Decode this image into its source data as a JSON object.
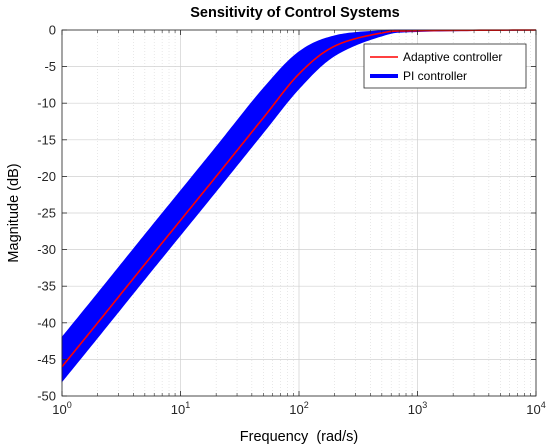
{
  "chart_data": {
    "type": "line",
    "title": "Sensitivity of Control Systems",
    "xlabel": "Frequency  (rad/s)",
    "ylabel": "Magnitude (dB)",
    "xscale": "log",
    "xlim": [
      1,
      10000
    ],
    "ylim": [
      -50,
      0
    ],
    "grid": true,
    "minor_grid": true,
    "legend_position": "top-right",
    "x_ticks": [
      {
        "base": "10",
        "exp": "0"
      },
      {
        "base": "10",
        "exp": "1"
      },
      {
        "base": "10",
        "exp": "2"
      },
      {
        "base": "10",
        "exp": "3"
      },
      {
        "base": "10",
        "exp": "4"
      }
    ],
    "y_ticks": [
      "0",
      "-5",
      "-10",
      "-15",
      "-20",
      "-25",
      "-30",
      "-35",
      "-40",
      "-45",
      "-50"
    ],
    "series": [
      {
        "name": "Adaptive controller",
        "color": "#ff0000",
        "x": [
          1,
          2,
          5,
          10,
          20,
          50,
          100,
          200,
          500,
          1000,
          10000
        ],
        "y": [
          -46.0,
          -40.0,
          -32.0,
          -26.0,
          -20.0,
          -12.0,
          -6.0,
          -2.2,
          -0.4,
          -0.1,
          0.0
        ]
      },
      {
        "name": "PI controller",
        "color": "#0000ff",
        "band": true,
        "x": [
          1,
          2,
          5,
          10,
          20,
          50,
          100,
          200,
          500,
          1000,
          10000
        ],
        "y_upper": [
          -42.0,
          -36.0,
          -28.0,
          -22.0,
          -16.0,
          -8.0,
          -3.0,
          -0.8,
          -0.1,
          0.0,
          0.0
        ],
        "y_lower": [
          -48.0,
          -42.0,
          -34.0,
          -28.0,
          -22.0,
          -14.0,
          -8.0,
          -3.5,
          -0.8,
          -0.2,
          0.0
        ]
      }
    ]
  }
}
